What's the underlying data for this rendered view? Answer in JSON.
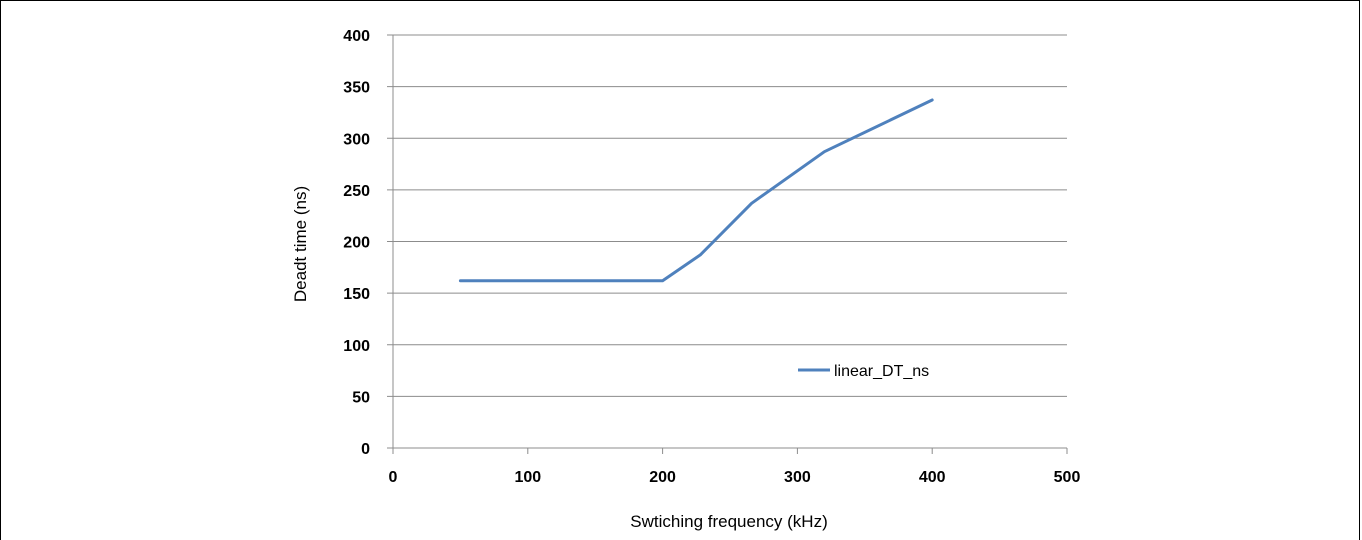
{
  "chart_data": {
    "type": "line",
    "title": "",
    "xlabel": "Swtiching frequency (kHz)",
    "ylabel": "Deadt time (ns)",
    "xlim": [
      0,
      500
    ],
    "ylim": [
      0,
      400
    ],
    "xticks": [
      0,
      100,
      200,
      300,
      400,
      500
    ],
    "yticks": [
      0,
      50,
      100,
      150,
      200,
      250,
      300,
      350,
      400
    ],
    "grid": "horizontal",
    "legend_position": "center-right",
    "series": [
      {
        "name": "linear_DT_ns",
        "color": "#4f81bd",
        "x": [
          50,
          100,
          150,
          200,
          228,
          266,
          320,
          400
        ],
        "y": [
          162,
          162,
          162,
          162,
          187,
          237,
          287,
          337
        ]
      }
    ]
  }
}
